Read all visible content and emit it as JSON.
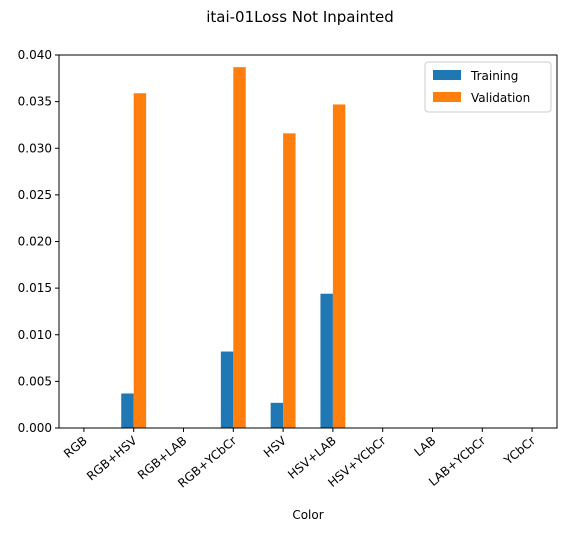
{
  "chart_data": {
    "type": "bar",
    "title": "itai-01Loss Not Inpainted",
    "xlabel": "Color",
    "ylabel": "",
    "categories": [
      "RGB",
      "RGB+HSV",
      "RGB+LAB",
      "RGB+YCbCr",
      "HSV",
      "HSV+LAB",
      "HSV+YCbCr",
      "LAB",
      "LAB+YCbCr",
      "YCbCr"
    ],
    "series": [
      {
        "name": "Training",
        "color": "#1f77b4",
        "values": [
          0,
          0.0037,
          0,
          0.0082,
          0.0027,
          0.0144,
          0,
          0,
          0,
          0
        ]
      },
      {
        "name": "Validation",
        "color": "#ff7f0e",
        "values": [
          0,
          0.0359,
          0,
          0.0387,
          0.0316,
          0.0347,
          0,
          0,
          0,
          0
        ]
      }
    ],
    "ylim": [
      0,
      0.04
    ],
    "yticks": [
      "0.000",
      "0.005",
      "0.010",
      "0.015",
      "0.020",
      "0.025",
      "0.030",
      "0.035",
      "0.040"
    ],
    "grid": false,
    "legend_position": "upper right"
  }
}
